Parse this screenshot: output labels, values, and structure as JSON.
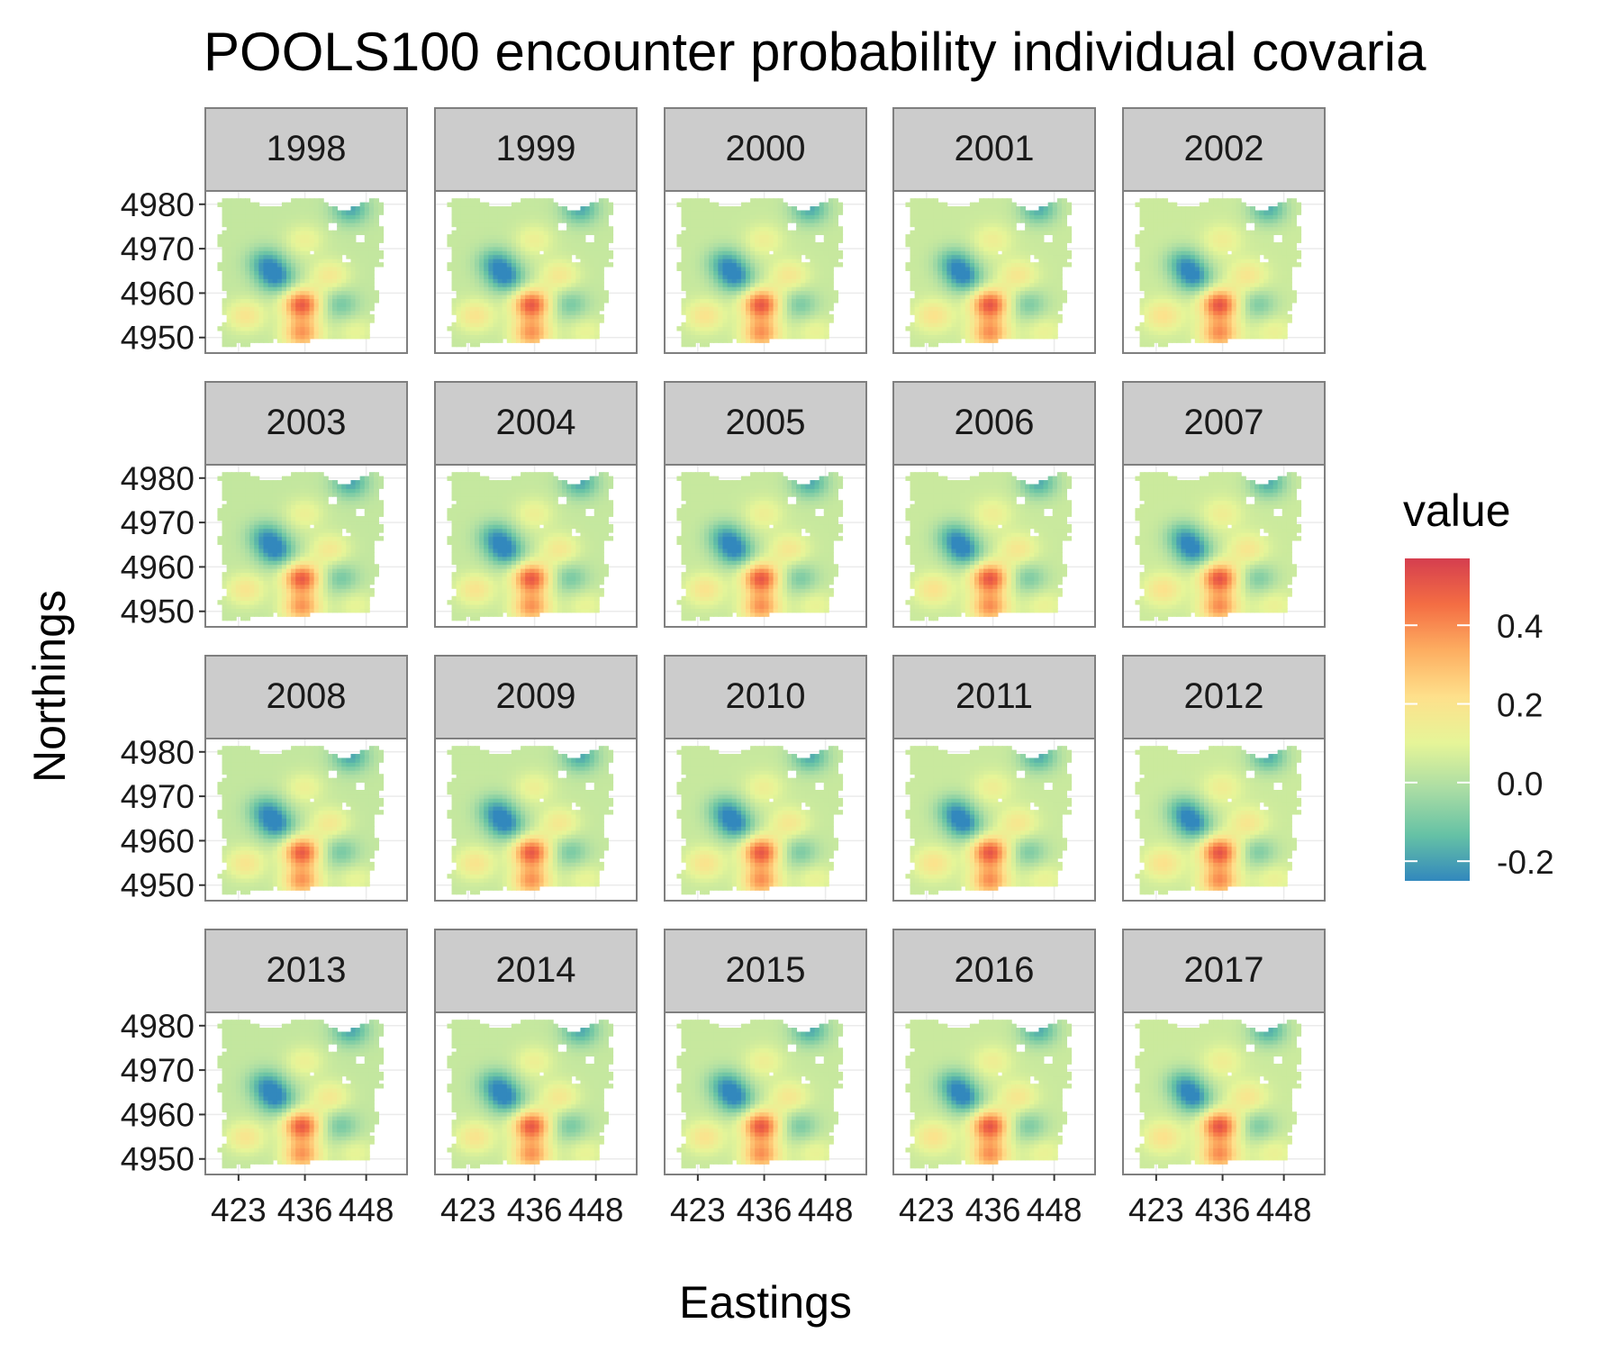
{
  "chart_data": {
    "type": "heatmap",
    "title": "POOLS100 encounter probability individual covaria",
    "xlabel": "Eastings",
    "ylabel": "Northings",
    "facets": [
      "1998",
      "1999",
      "2000",
      "2001",
      "2002",
      "2003",
      "2004",
      "2005",
      "2006",
      "2007",
      "2008",
      "2009",
      "2010",
      "2011",
      "2012",
      "2013",
      "2014",
      "2015",
      "2016",
      "2017"
    ],
    "x_ticks": [
      423,
      436,
      448
    ],
    "y_ticks": [
      4950,
      4960,
      4970,
      4980
    ],
    "xlim": [
      416.5,
      456
    ],
    "ylim": [
      4946.5,
      4983
    ],
    "legend": {
      "title": "value",
      "breaks": [
        0.4,
        0.2,
        0.0,
        -0.2
      ],
      "break_labels": [
        "0.4",
        "0.2",
        "0.0",
        "-0.2"
      ],
      "range": [
        -0.25,
        0.57
      ],
      "colors": [
        "#3288bd",
        "#66c2a5",
        "#abdda4",
        "#e6f598",
        "#fee08b",
        "#fdae61",
        "#f46d43",
        "#d53e4f"
      ],
      "position": "right"
    },
    "surface": {
      "description_fields": [
        "east",
        "north",
        "value"
      ],
      "features": [
        {
          "east": 430.5,
          "north": 4963.5,
          "value": -0.22
        },
        {
          "east": 428.5,
          "north": 4967.0,
          "value": -0.17
        },
        {
          "east": 445.0,
          "north": 4979.0,
          "value": -0.18
        },
        {
          "east": 443.0,
          "north": 4957.5,
          "value": -0.1
        },
        {
          "east": 435.5,
          "north": 4957.5,
          "value": 0.5
        },
        {
          "east": 435.5,
          "north": 4951.0,
          "value": 0.38
        },
        {
          "east": 441.0,
          "north": 4964.0,
          "value": 0.18
        },
        {
          "east": 436.0,
          "north": 4972.0,
          "value": 0.14
        },
        {
          "east": 424.5,
          "north": 4955.0,
          "value": 0.2
        },
        {
          "east": 446.0,
          "north": 4951.5,
          "value": 0.12
        }
      ]
    }
  }
}
